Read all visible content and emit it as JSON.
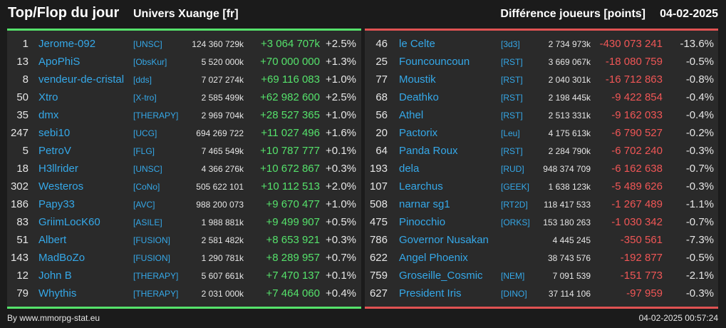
{
  "header": {
    "title": "Top/Flop du jour",
    "universe": "Univers Xuange [fr]",
    "subtitle": "Différence joueurs [points]",
    "date": "04-02-2025"
  },
  "colors": {
    "positive": "#55e26b",
    "negative": "#f05656",
    "link": "#35a8e8"
  },
  "top": [
    {
      "rank": "1",
      "name": "Jerome-092",
      "ally": "[UNSC]",
      "points": "124 360 729k",
      "diff": "+3 064 707k",
      "pct": "+2.5%"
    },
    {
      "rank": "13",
      "name": "ApoPhiS",
      "ally": "[ObsKur]",
      "points": "5 520 000k",
      "diff": "+70 000 000",
      "pct": "+1.3%"
    },
    {
      "rank": "8",
      "name": "vendeur-de-cristal",
      "ally": "[dds]",
      "points": "7 027 274k",
      "diff": "+69 116 083",
      "pct": "+1.0%"
    },
    {
      "rank": "50",
      "name": "Xtro",
      "ally": "[X-tro]",
      "points": "2 585 499k",
      "diff": "+62 982 600",
      "pct": "+2.5%"
    },
    {
      "rank": "35",
      "name": "dmx",
      "ally": "[THERAPY]",
      "points": "2 969 704k",
      "diff": "+28 527 365",
      "pct": "+1.0%"
    },
    {
      "rank": "247",
      "name": "sebi10",
      "ally": "[UCG]",
      "points": "694 269 722",
      "diff": "+11 027 496",
      "pct": "+1.6%"
    },
    {
      "rank": "5",
      "name": "PetroV",
      "ally": "[FLG]",
      "points": "7 465 549k",
      "diff": "+10 787 777",
      "pct": "+0.1%"
    },
    {
      "rank": "18",
      "name": "H3llrider",
      "ally": "[UNSC]",
      "points": "4 366 276k",
      "diff": "+10 672 867",
      "pct": "+0.3%"
    },
    {
      "rank": "302",
      "name": "Westeros",
      "ally": "[CoNo]",
      "points": "505 622 101",
      "diff": "+10 112 513",
      "pct": "+2.0%"
    },
    {
      "rank": "186",
      "name": "Papy33",
      "ally": "[AVC]",
      "points": "988 200 073",
      "diff": "+9 670 477",
      "pct": "+1.0%"
    },
    {
      "rank": "83",
      "name": "GriimLocK60",
      "ally": "[ASILE]",
      "points": "1 988 881k",
      "diff": "+9 499 907",
      "pct": "+0.5%"
    },
    {
      "rank": "51",
      "name": "Albert",
      "ally": "[FUSION]",
      "points": "2 581 482k",
      "diff": "+8 653 921",
      "pct": "+0.3%"
    },
    {
      "rank": "143",
      "name": "MadBoZo",
      "ally": "[FUSION]",
      "points": "1 290 781k",
      "diff": "+8 289 957",
      "pct": "+0.7%"
    },
    {
      "rank": "12",
      "name": "John B",
      "ally": "[THERAPY]",
      "points": "5 607 661k",
      "diff": "+7 470 137",
      "pct": "+0.1%"
    },
    {
      "rank": "79",
      "name": "Whythis",
      "ally": "[THERAPY]",
      "points": "2 031 000k",
      "diff": "+7 464 060",
      "pct": "+0.4%"
    }
  ],
  "flop": [
    {
      "rank": "46",
      "name": "le Celte",
      "ally": "[3d3]",
      "points": "2 734 973k",
      "diff": "-430 073 241",
      "pct": "-13.6%"
    },
    {
      "rank": "25",
      "name": "Founcouncoun",
      "ally": "[RST]",
      "points": "3 669 067k",
      "diff": "-18 080 759",
      "pct": "-0.5%"
    },
    {
      "rank": "77",
      "name": "Moustik",
      "ally": "[RST]",
      "points": "2 040 301k",
      "diff": "-16 712 863",
      "pct": "-0.8%"
    },
    {
      "rank": "68",
      "name": "Deathko",
      "ally": "[RST]",
      "points": "2 198 445k",
      "diff": "-9 422 854",
      "pct": "-0.4%"
    },
    {
      "rank": "56",
      "name": "Athel",
      "ally": "[RST]",
      "points": "2 513 331k",
      "diff": "-9 162 033",
      "pct": "-0.4%"
    },
    {
      "rank": "20",
      "name": "Pactorix",
      "ally": "[Leu]",
      "points": "4 175 613k",
      "diff": "-6 790 527",
      "pct": "-0.2%"
    },
    {
      "rank": "64",
      "name": "Panda Roux",
      "ally": "[RST]",
      "points": "2 284 790k",
      "diff": "-6 702 240",
      "pct": "-0.3%"
    },
    {
      "rank": "193",
      "name": "dela",
      "ally": "[RUD]",
      "points": "948 374 709",
      "diff": "-6 162 638",
      "pct": "-0.7%"
    },
    {
      "rank": "107",
      "name": "Learchus",
      "ally": "[GEEK]",
      "points": "1 638 123k",
      "diff": "-5 489 626",
      "pct": "-0.3%"
    },
    {
      "rank": "508",
      "name": "narnar sg1",
      "ally": "[RT2D]",
      "points": "118 417 533",
      "diff": "-1 267 489",
      "pct": "-1.1%"
    },
    {
      "rank": "475",
      "name": "Pinocchio",
      "ally": "[ORKS]",
      "points": "153 180 263",
      "diff": "-1 030 342",
      "pct": "-0.7%"
    },
    {
      "rank": "786",
      "name": "Governor Nusakan",
      "ally": "",
      "points": "4 445 245",
      "diff": "-350 561",
      "pct": "-7.3%"
    },
    {
      "rank": "622",
      "name": "Angel Phoenix",
      "ally": "",
      "points": "38 743 576",
      "diff": "-192 877",
      "pct": "-0.5%"
    },
    {
      "rank": "759",
      "name": "Groseille_Cosmic",
      "ally": "[NEM]",
      "points": "7 091 539",
      "diff": "-151 773",
      "pct": "-2.1%"
    },
    {
      "rank": "627",
      "name": "President Iris",
      "ally": "[DINO]",
      "points": "37 114 106",
      "diff": "-97 959",
      "pct": "-0.3%"
    }
  ],
  "footer": {
    "credit": "By www.mmorpg-stat.eu",
    "timestamp": "04-02-2025 00:57:24"
  }
}
